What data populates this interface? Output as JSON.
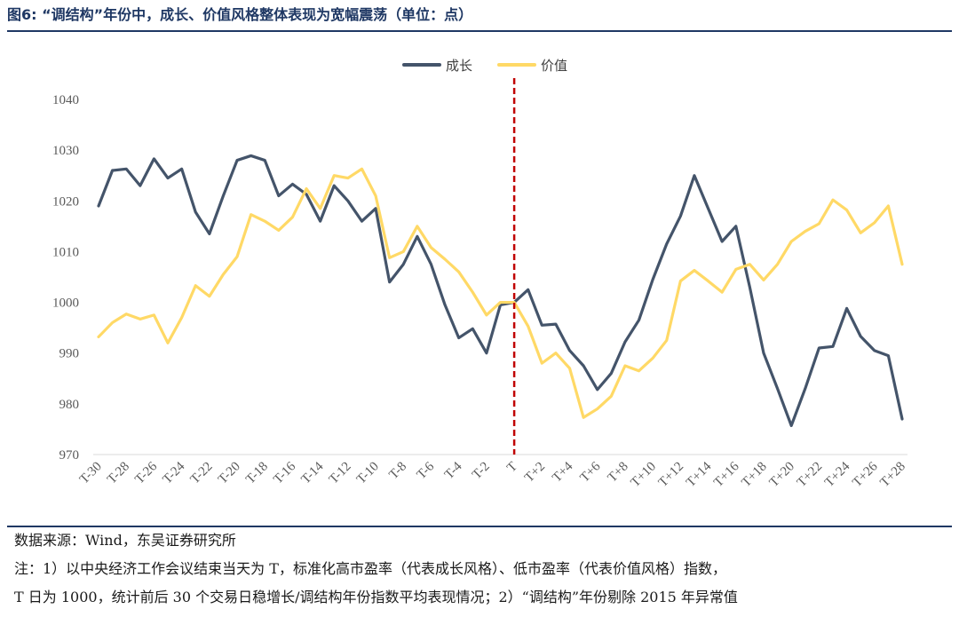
{
  "figure": {
    "title": "图6:  “调结构”年份中，成长、价值风格整体表现为宽幅震荡（单位：点）"
  },
  "notes": {
    "source": "数据来源：Wind，东吴证券研究所",
    "line1": "注：1）以中央经济工作会议结束当天为 T，标准化高市盈率（代表成长风格）、低市盈率（代表价值风格）指数，",
    "line2": "T 日为 1000，统计前后 30 个交易日稳增长/调结构年份指数平均表现情况；2）“调结构”年份剔除 2015 年异常值"
  },
  "colors": {
    "growth": "#44546a",
    "value": "#ffd966",
    "marker": "#c00000",
    "axis_text": "#595959"
  },
  "chart_data": {
    "type": "line",
    "title": "",
    "xlabel": "",
    "ylabel": "",
    "ylim": [
      970,
      1040
    ],
    "y_ticks": [
      970,
      980,
      990,
      1000,
      1010,
      1020,
      1030,
      1040
    ],
    "grid": false,
    "legend": "top-center",
    "x": [
      "T-30",
      "T-29",
      "T-28",
      "T-27",
      "T-26",
      "T-25",
      "T-24",
      "T-23",
      "T-22",
      "T-21",
      "T-20",
      "T-19",
      "T-18",
      "T-17",
      "T-16",
      "T-15",
      "T-14",
      "T-13",
      "T-12",
      "T-11",
      "T-10",
      "T-9",
      "T-8",
      "T-7",
      "T-6",
      "T-5",
      "T-4",
      "T-3",
      "T-2",
      "T-1",
      "T",
      "T+1",
      "T+2",
      "T+3",
      "T+4",
      "T+5",
      "T+6",
      "T+7",
      "T+8",
      "T+9",
      "T+10",
      "T+11",
      "T+12",
      "T+13",
      "T+14",
      "T+15",
      "T+16",
      "T+17",
      "T+18",
      "T+19",
      "T+20",
      "T+21",
      "T+22",
      "T+23",
      "T+24",
      "T+25",
      "T+26",
      "T+27",
      "T+28"
    ],
    "tick_labels": [
      "T-30",
      "T-28",
      "T-26",
      "T-24",
      "T-22",
      "T-20",
      "T-18",
      "T-16",
      "T-14",
      "T-12",
      "T-10",
      "T-8",
      "T-6",
      "T-4",
      "T-2",
      "T",
      "T+2",
      "T+4",
      "T+6",
      "T+8",
      "T+10",
      "T+12",
      "T+14",
      "T+16",
      "T+18",
      "T+20",
      "T+22",
      "T+24",
      "T+26",
      "T+28"
    ],
    "vline_at": "T",
    "series": [
      {
        "name": "成长",
        "values": [
          1019,
          1026,
          1026.3,
          1023,
          1028.3,
          1024.5,
          1026.3,
          1017.8,
          1013.5,
          1021,
          1028,
          1028.9,
          1028,
          1021,
          1023.3,
          1021.3,
          1016,
          1023,
          1020,
          1016,
          1018.5,
          1004,
          1007.5,
          1013,
          1007.5,
          999.5,
          993,
          994.8,
          990,
          999.5,
          1000,
          1002.5,
          995.5,
          995.7,
          990.5,
          987.5,
          982.8,
          986,
          992.2,
          996.5,
          1004.5,
          1011.5,
          1017,
          1025,
          1018.5,
          1012,
          1015,
          1003,
          990,
          983,
          975.7,
          983,
          991,
          991.3,
          998.8,
          993.3,
          990.5,
          989.5,
          977
        ]
      },
      {
        "name": "价值",
        "values": [
          993.2,
          996,
          997.7,
          996.7,
          997.5,
          992,
          997,
          1003.3,
          1001.2,
          1005.5,
          1009,
          1017.3,
          1016,
          1014.2,
          1016.8,
          1022.4,
          1018.5,
          1025,
          1024.5,
          1026.3,
          1021,
          1008.8,
          1010,
          1015,
          1010.8,
          1008.5,
          1006,
          1002,
          997.5,
          1000,
          1000,
          995.3,
          988,
          990,
          987,
          977.3,
          979,
          981.5,
          987.5,
          986.5,
          989,
          992.5,
          1004.2,
          1006.3,
          1004.2,
          1002,
          1006.5,
          1007.5,
          1004.4,
          1007.5,
          1012,
          1014,
          1015.5,
          1020.2,
          1018.2,
          1013.7,
          1015.7,
          1019,
          1007.5
        ]
      }
    ]
  }
}
